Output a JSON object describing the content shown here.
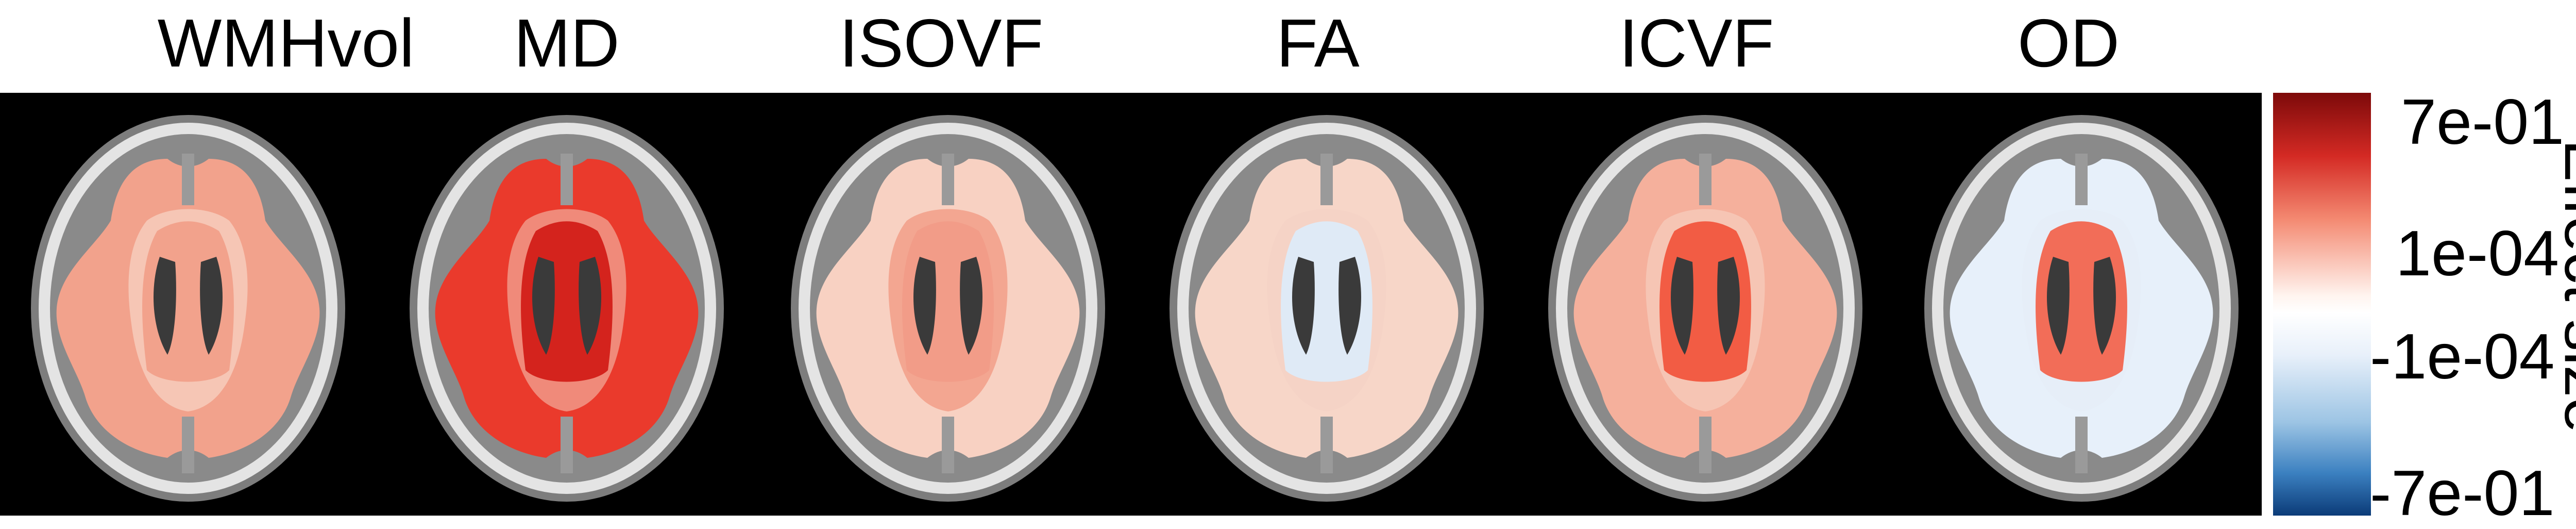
{
  "panels": [
    "WMHvol",
    "MD",
    "ISOVF",
    "FA",
    "ICVF",
    "OD"
  ],
  "colorbar": {
    "title": "Effect size",
    "ticks": [
      "7e-01",
      "1e-04",
      "-1e-04",
      "-7e-01"
    ],
    "colors": {
      "strong_positive": "#8b0a0a",
      "mid_positive": "#f4725a",
      "weak_positive": "#fde3d8",
      "weak_negative": "#e4eef8",
      "mid_negative": "#6fa6d3",
      "strong_negative": "#0a3f7a"
    }
  },
  "map_fill": {
    "WMHvol": {
      "outer": "#f2a28c",
      "core": "#f2a28c",
      "periv": "#f6c6b5"
    },
    "MD": {
      "outer": "#ea3a2c",
      "core": "#d4231d",
      "periv": "#f08a7a"
    },
    "ISOVF": {
      "outer": "#f8d1c2",
      "core": "#f29c88",
      "periv": "#f3a691"
    },
    "FA": {
      "outer": "#f7d6c8",
      "core": "#dfeaf6",
      "periv": "#f5d3c6"
    },
    "ICVF": {
      "outer": "#f5b09c",
      "core": "#f25c44",
      "periv": "#f6c5b4"
    },
    "OD": {
      "outer": "#e7f0fa",
      "core": "#f26d58",
      "periv": "#e6eef8"
    }
  }
}
